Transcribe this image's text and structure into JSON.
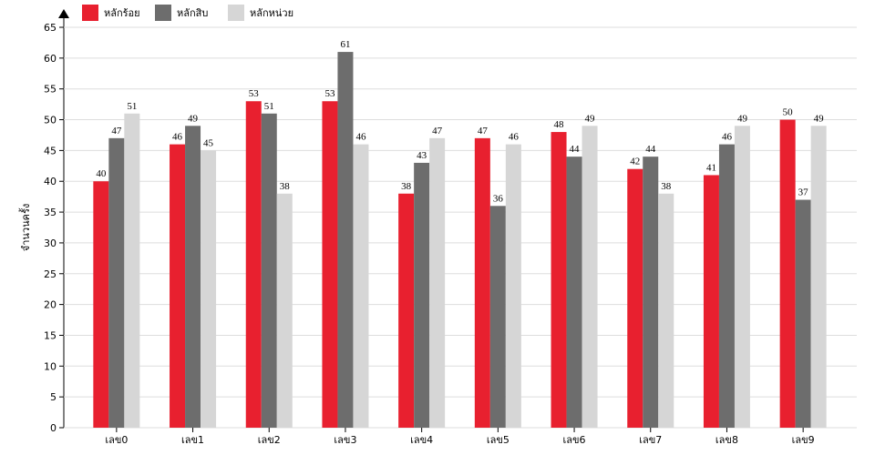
{
  "chart_data": {
    "type": "bar",
    "y_label": "จำนวนครั้ง",
    "categories": [
      "เลข0",
      "เลข1",
      "เลข2",
      "เลข3",
      "เลข4",
      "เลข5",
      "เลข6",
      "เลข7",
      "เลข8",
      "เลข9"
    ],
    "series": [
      {
        "name": "หลักร้อย",
        "color": "#e8202f",
        "values": [
          40,
          46,
          53,
          53,
          38,
          47,
          48,
          42,
          41,
          50
        ]
      },
      {
        "name": "หลักสิบ",
        "color": "#6d6d6d",
        "values": [
          47,
          49,
          51,
          61,
          43,
          36,
          44,
          44,
          46,
          37
        ]
      },
      {
        "name": "หลักหน่วย",
        "color": "#d6d6d6",
        "values": [
          51,
          45,
          38,
          46,
          47,
          46,
          49,
          38,
          49,
          49
        ]
      }
    ],
    "ylim": [
      0,
      65
    ],
    "yticks": [
      0,
      5,
      10,
      15,
      20,
      25,
      30,
      35,
      40,
      45,
      50,
      55,
      60,
      65
    ],
    "grid": true
  }
}
